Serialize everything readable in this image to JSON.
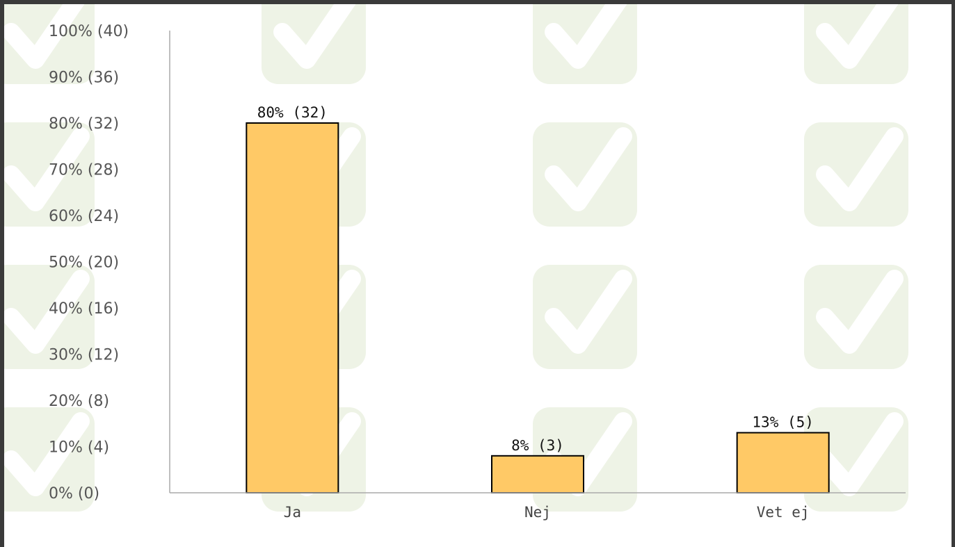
{
  "chart_data": {
    "type": "bar",
    "categories": [
      "Ja",
      "Nej",
      "Vet ej"
    ],
    "values": [
      80,
      8,
      13
    ],
    "counts": [
      32,
      3,
      5
    ],
    "data_labels": [
      "80% (32)",
      "8% (3)",
      "13% (5)"
    ],
    "ylim": [
      0,
      100
    ],
    "y_ticks": [
      0,
      10,
      20,
      30,
      40,
      50,
      60,
      70,
      80,
      90,
      100
    ],
    "y_tick_labels": [
      "0% (0)",
      "10% (4)",
      "20% (8)",
      "30% (12)",
      "40% (16)",
      "50% (20)",
      "60% (24)",
      "70% (28)",
      "80% (32)",
      "90% (36)",
      "100% (40)"
    ],
    "grid": false,
    "title": "",
    "xlabel": "",
    "ylabel": ""
  },
  "colors": {
    "bar_fill": "#FFC966",
    "bar_stroke": "#000000",
    "axis": "#AAAAAA",
    "watermark_tile": "#EEF3E6",
    "watermark_check": "#FFFFFF"
  },
  "background": {
    "watermark_icon": "check-tile-icon"
  }
}
